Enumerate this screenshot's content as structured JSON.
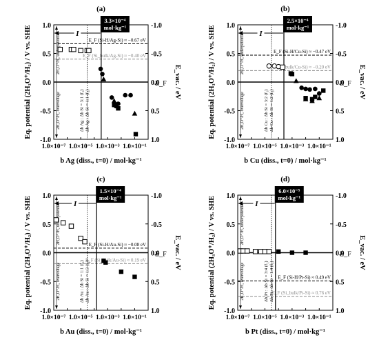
{
  "chart_data": [
    {
      "panel_label": "(a)",
      "type": "scatter",
      "xlabel": "b Ag (diss., t=0) / mol·kg⁻¹",
      "ylabel": "Eq. potential (2H₃O⁺/H₂) / V vs. SHE",
      "y2label": "E_vac. / eV",
      "xscale": "log",
      "xlim": [
        1e-07,
        1
      ],
      "ylim": [
        -1.0,
        1.0
      ],
      "y2lim": [
        -1.0,
        1.0
      ],
      "x_ticks": [
        "1.0×10⁻⁷",
        "1.0×10⁻⁵",
        "1.0×10⁻³",
        "1.0×10⁻¹"
      ],
      "y_ticks": [
        "1.0",
        "0.5",
        "0.0",
        "-0.5",
        "-1.0"
      ],
      "y2_ticks": [
        "-1.0",
        "-0.5",
        "0.0",
        "0.5",
        "1.0"
      ],
      "ef_label": "E_F",
      "i_label": "I",
      "callout_lines": [
        "3.3×10⁻⁴",
        "mol·kg⁻¹"
      ],
      "callout_x": 0.00033,
      "region_top_label": "2H₃O⁺/H₂ underpotential",
      "region_bottom_label": "2H₃O⁺/H₂ overvoltage",
      "ratio_labels": [
        "Δb Ag : Δb Si = 3:1 (f₁)",
        "Δb Ag : Δb Si = 1:1 (f₂)"
      ],
      "ratio_x": 3e-05,
      "hlines": [
        {
          "y": 0.67,
          "label": "E_F (Si-H/Ag-Si) ≈ −0.67 eV",
          "color": "#000000",
          "dashed": true
        },
        {
          "y": 0.4,
          "label": "E_F (Si_bulk/Ag-Si) ≈ −0.40 eV",
          "color": "#8a8a8a",
          "dashed": true
        }
      ],
      "series": [
        {
          "marker": "open_square",
          "points": [
            [
              3e-07,
              0.57
            ],
            [
              2e-06,
              0.57
            ],
            [
              3e-06,
              0.57
            ],
            [
              1e-05,
              0.55
            ],
            [
              3e-05,
              0.55
            ],
            [
              4e-05,
              0.55
            ]
          ]
        },
        {
          "marker": "filled_circle",
          "points": [
            [
              0.0003,
              0.23
            ],
            [
              0.0004,
              0.14
            ],
            [
              0.002,
              -0.27
            ],
            [
              0.004,
              -0.42
            ],
            [
              0.006,
              -0.38
            ],
            [
              0.02,
              -0.23
            ],
            [
              0.05,
              -0.23
            ]
          ]
        },
        {
          "marker": "filled_triangle",
          "points": [
            [
              0.0005,
              0.05
            ],
            [
              0.003,
              -0.33
            ],
            [
              0.1,
              -0.55
            ]
          ]
        },
        {
          "marker": "filled_square",
          "points": [
            [
              0.003,
              -0.4
            ],
            [
              0.006,
              -0.46
            ],
            [
              0.12,
              -0.91
            ]
          ]
        }
      ]
    },
    {
      "panel_label": "(b)",
      "type": "scatter",
      "xlabel": "b Cu (diss., t=0) / mol·kg⁻¹",
      "ylabel": "Eq. potential (2H₃O⁺/H₂) / V vs. SHE",
      "y2label": "E_vac. / eV",
      "xscale": "log",
      "xlim": [
        1e-07,
        1
      ],
      "ylim": [
        -1.0,
        1.0
      ],
      "y2lim": [
        -1.0,
        1.0
      ],
      "x_ticks": [
        "1.0×10⁻⁷",
        "1.0×10⁻⁵",
        "1.0×10⁻³",
        "1.0×10⁻¹"
      ],
      "y_ticks": [
        "1.0",
        "0.5",
        "0.0",
        "-0.5",
        "-1.0"
      ],
      "y2_ticks": [
        "-1.0",
        "-0.5",
        "0.0",
        "0.5",
        "1.0"
      ],
      "ef_label": "E_F",
      "i_label": "I",
      "callout_lines": [
        "2.5×10⁻⁴",
        "mol·kg⁻¹"
      ],
      "callout_x": 0.00025,
      "region_top_label": "2H₃O⁺/H₂ underpotential",
      "region_bottom_label": "2H₃O⁺/H₂ overvoltage",
      "ratio_labels": [
        "Δb Cu : Δb Si = 3:2 (f₁)",
        "Δb Cu : Δb Si = 1:2 (f₂)"
      ],
      "ratio_x": 3e-05,
      "hlines": [
        {
          "y": 0.47,
          "label": "E_F (Si-H/Cu-Si) ≈ −0.47 eV",
          "color": "#000000",
          "dashed": true
        },
        {
          "y": 0.2,
          "label": "E_F (Si_bulk/Cu-Si) ≈ −0.20 eV",
          "color": "#8a8a8a",
          "dashed": true
        }
      ],
      "series": [
        {
          "marker": "open_circle",
          "points": [
            [
              2e-05,
              0.28
            ],
            [
              5e-05,
              0.28
            ],
            [
              0.0001,
              0.27
            ]
          ]
        },
        {
          "marker": "open_square",
          "points": [
            [
              0.0002,
              0.26
            ]
          ]
        },
        {
          "marker": "filled_square",
          "points": [
            [
              0.0008,
              0.15
            ],
            [
              0.001,
              0.14
            ],
            [
              0.01,
              -0.28
            ],
            [
              0.03,
              -0.3
            ],
            [
              0.05,
              -0.26
            ],
            [
              0.2,
              -0.15
            ]
          ]
        },
        {
          "marker": "filled_triangle",
          "points": [
            [
              0.002,
              0.02
            ],
            [
              0.01,
              -0.3
            ],
            [
              0.03,
              -0.33
            ],
            [
              0.1,
              -0.28
            ]
          ]
        },
        {
          "marker": "filled_circle",
          "points": [
            [
              0.005,
              -0.1
            ],
            [
              0.01,
              -0.12
            ],
            [
              0.02,
              -0.13
            ],
            [
              0.05,
              -0.12
            ],
            [
              0.1,
              -0.2
            ]
          ]
        }
      ]
    },
    {
      "panel_label": "(c)",
      "type": "scatter",
      "xlabel": "b Au (diss., t=0) / mol·kg⁻¹",
      "ylabel": "Eq. potential (2H₃O⁺/H₂) / V vs. SHE",
      "y2label": "E_vac. / eV",
      "xscale": "log",
      "xlim": [
        1e-07,
        1
      ],
      "ylim": [
        -1.0,
        1.0
      ],
      "y2lim": [
        -1.0,
        1.0
      ],
      "x_ticks": [
        "1.0×10⁻⁷",
        "1.0×10⁻⁵",
        "1.0×10⁻³",
        "1.0×10⁻¹"
      ],
      "y_ticks": [
        "1.0",
        "0.5",
        "0.0",
        "-0.5",
        "-1.0"
      ],
      "y2_ticks": [
        "-1.0",
        "-0.5",
        "0.0",
        "0.5",
        "1.0"
      ],
      "ef_label": "E_F",
      "i_label": "I",
      "callout_lines": [
        "1.5×10⁻⁴",
        "mol·kg⁻¹"
      ],
      "callout_x": 0.00015,
      "region_top_label": "2H₃O⁺/H₂ underpotential",
      "region_bottom_label": "2H₃O⁺/H₂ overvoltage",
      "ratio_labels": [
        "Δb Au : Δb Si = 1:1 (f₁)",
        "Δb Au : Δb Si = 1:3 (f₂)"
      ],
      "ratio_x": 3e-05,
      "hlines": [
        {
          "y": 0.08,
          "label": "E_F (Si-H/Au-Si) ≈ −0.08 eV",
          "color": "#000000",
          "dashed": true
        },
        {
          "y": -0.19,
          "label": "E_F (Si_bulk/Au-Si) ≈ 0.19 eV",
          "color": "#8a8a8a",
          "dashed": true
        }
      ],
      "series": [
        {
          "marker": "open_square",
          "points": [
            [
              1.5e-07,
              0.57
            ],
            [
              5e-07,
              0.52
            ],
            [
              2e-06,
              0.46
            ],
            [
              1e-05,
              0.25
            ],
            [
              2e-05,
              0.19
            ]
          ]
        },
        {
          "marker": "filled_square",
          "points": [
            [
              0.0005,
              -0.14
            ],
            [
              0.0007,
              -0.17
            ],
            [
              0.01,
              -0.33
            ],
            [
              0.1,
              -0.42
            ]
          ]
        }
      ]
    },
    {
      "panel_label": "(d)",
      "type": "scatter",
      "xlabel": "b Pt (diss., t=0) / mol·kg⁻¹",
      "ylabel": "Eq. potential (2H₃O⁺/H₂) / V vs. SHE",
      "y2label": "E_vac. / eV",
      "xscale": "log",
      "xlim": [
        1e-07,
        1
      ],
      "ylim": [
        -1.0,
        1.0
      ],
      "y2lim": [
        -1.0,
        1.0
      ],
      "x_ticks": [
        "1.0×10⁻⁷",
        "1.0×10⁻⁵",
        "1.0×10⁻³",
        "1.0×10⁻¹"
      ],
      "y_ticks": [
        "1.0",
        "0.5",
        "0.0",
        "-0.5",
        "-1.0"
      ],
      "y2_ticks": [
        "-1.0",
        "-0.5",
        "0.0",
        "0.5",
        "1.0"
      ],
      "ef_label": "E_F",
      "i_label": "I",
      "callout_lines": [
        "6.0×10⁻⁵",
        "mol·kg⁻¹"
      ],
      "callout_x": 6e-05,
      "region_top_label": "2H₃O⁺/H₂ underpotential",
      "region_bottom_label": "2H₃O⁺/H₂ overvoltage",
      "ratio_labels": [
        "Δb Pt : Δb Si = 3:4 (f₁)",
        "Δb Pt : Δb Si = 1:4 (f₂)"
      ],
      "ratio_x": 3e-05,
      "hlines": [
        {
          "y": -0.49,
          "label": "E_F (Si-H/Pt-Si) ≈ 0.49 eV",
          "color": "#000000",
          "dashed": true
        },
        {
          "y": -0.76,
          "label": "E_F (Si_bulk/Pt-Si) ≈ 0.76 eV",
          "color": "#8a8a8a",
          "dashed": true
        }
      ],
      "series": [
        {
          "marker": "open_square",
          "points": [
            [
              1.5e-07,
              0.03
            ],
            [
              2.5e-07,
              0.03
            ],
            [
              5e-07,
              0.03
            ],
            [
              2e-06,
              0.02
            ],
            [
              5e-06,
              0.02
            ],
            [
              1e-05,
              0.02
            ],
            [
              2e-05,
              0.02
            ]
          ]
        },
        {
          "marker": "filled_square",
          "points": [
            [
              0.0001,
              0.02
            ],
            [
              0.001,
              0.0
            ],
            [
              0.01,
              0.0
            ]
          ]
        }
      ]
    }
  ]
}
